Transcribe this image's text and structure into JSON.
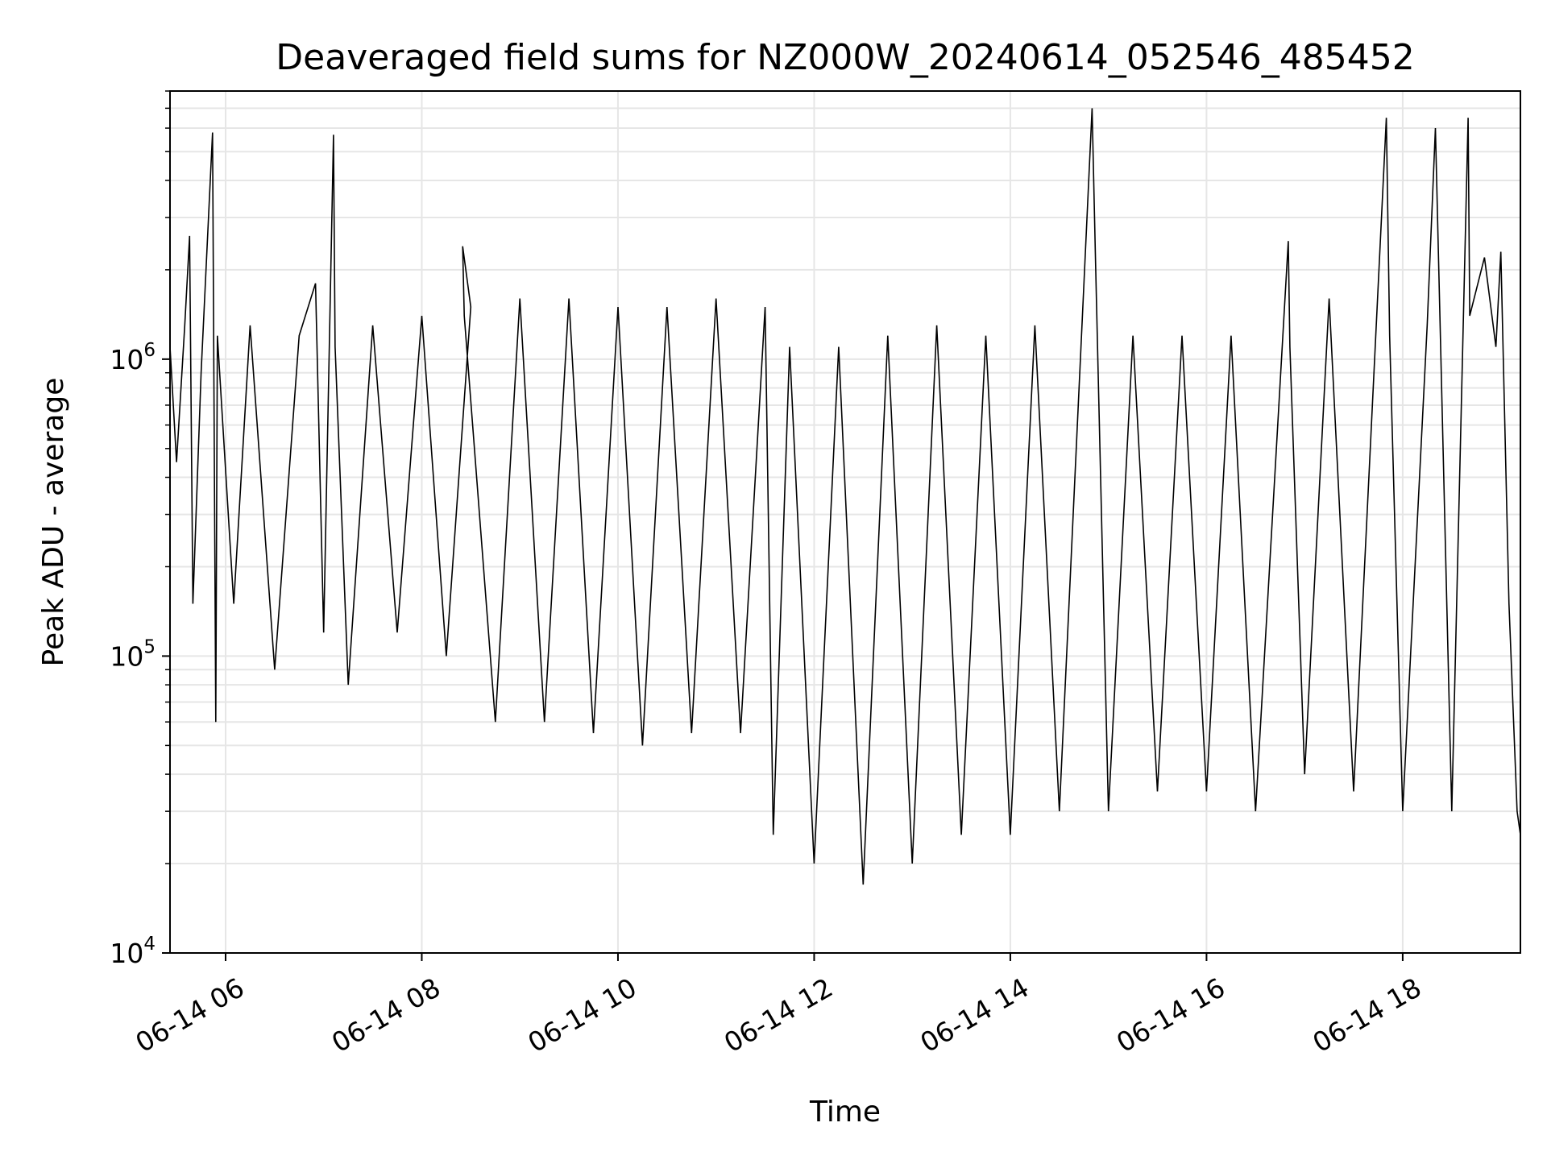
{
  "chart_data": {
    "type": "line",
    "title": "Deaveraged field sums for NZ000W_20240614_052546_485452",
    "xlabel": "Time",
    "ylabel": "Peak ADU - average",
    "yscale": "log",
    "ylim": [
      10000,
      8000000
    ],
    "xlim": [
      "2024-06-14 05:26",
      "2024-06-14 19:12"
    ],
    "grid": true,
    "line_color": "#000000",
    "grid_color": "#e6e6e6",
    "x_ticks": [
      {
        "value": "2024-06-14 06:00",
        "label": "06-14 06"
      },
      {
        "value": "2024-06-14 08:00",
        "label": "06-14 08"
      },
      {
        "value": "2024-06-14 10:00",
        "label": "06-14 10"
      },
      {
        "value": "2024-06-14 12:00",
        "label": "06-14 12"
      },
      {
        "value": "2024-06-14 14:00",
        "label": "06-14 14"
      },
      {
        "value": "2024-06-14 16:00",
        "label": "06-14 16"
      },
      {
        "value": "2024-06-14 18:00",
        "label": "06-14 18"
      }
    ],
    "y_ticks": [
      {
        "value": 10000,
        "base": "10",
        "exp": "4"
      },
      {
        "value": 100000,
        "base": "10",
        "exp": "5"
      },
      {
        "value": 1000000,
        "base": "10",
        "exp": "6"
      }
    ],
    "series": [
      {
        "x": [
          "2024-06-14 05:26",
          "2024-06-14 05:30",
          "2024-06-14 05:35",
          "2024-06-14 05:38",
          "2024-06-14 05:40",
          "2024-06-14 05:45",
          "2024-06-14 05:52",
          "2024-06-14 05:54",
          "2024-06-14 05:55",
          "2024-06-14 06:05",
          "2024-06-14 06:15",
          "2024-06-14 06:30",
          "2024-06-14 06:45",
          "2024-06-14 06:55",
          "2024-06-14 07:00",
          "2024-06-14 07:06",
          "2024-06-14 07:07",
          "2024-06-14 07:15",
          "2024-06-14 07:30",
          "2024-06-14 07:45",
          "2024-06-14 08:00",
          "2024-06-14 08:15",
          "2024-06-14 08:30",
          "2024-06-14 08:25",
          "2024-06-14 08:26",
          "2024-06-14 08:45",
          "2024-06-14 09:00",
          "2024-06-14 09:15",
          "2024-06-14 09:30",
          "2024-06-14 09:45",
          "2024-06-14 10:00",
          "2024-06-14 10:15",
          "2024-06-14 10:30",
          "2024-06-14 10:45",
          "2024-06-14 11:00",
          "2024-06-14 11:15",
          "2024-06-14 11:30",
          "2024-06-14 11:35",
          "2024-06-14 11:45",
          "2024-06-14 12:00",
          "2024-06-14 12:15",
          "2024-06-14 12:30",
          "2024-06-14 12:45",
          "2024-06-14 13:00",
          "2024-06-14 13:15",
          "2024-06-14 13:30",
          "2024-06-14 13:45",
          "2024-06-14 14:00",
          "2024-06-14 14:15",
          "2024-06-14 14:30",
          "2024-06-14 14:50",
          "2024-06-14 14:52",
          "2024-06-14 15:00",
          "2024-06-14 15:15",
          "2024-06-14 15:30",
          "2024-06-14 15:45",
          "2024-06-14 16:00",
          "2024-06-14 16:15",
          "2024-06-14 16:30",
          "2024-06-14 16:50",
          "2024-06-14 16:51",
          "2024-06-14 17:00",
          "2024-06-14 17:15",
          "2024-06-14 17:30",
          "2024-06-14 17:50",
          "2024-06-14 17:52",
          "2024-06-14 18:00",
          "2024-06-14 18:15",
          "2024-06-14 18:20",
          "2024-06-14 18:30",
          "2024-06-14 18:40",
          "2024-06-14 18:41",
          "2024-06-14 18:50",
          "2024-06-14 18:57",
          "2024-06-14 19:00",
          "2024-06-14 19:05",
          "2024-06-14 19:10",
          "2024-06-14 19:12"
        ],
        "y": [
          1100000,
          450000,
          1300000,
          2600000,
          150000,
          900000,
          5800000,
          60000,
          1200000,
          150000,
          1300000,
          90000,
          1200000,
          1800000,
          120000,
          5700000,
          1100000,
          80000,
          1300000,
          120000,
          1400000,
          100000,
          1500000,
          2400000,
          1400000,
          60000,
          1600000,
          60000,
          1600000,
          55000,
          1500000,
          50000,
          1500000,
          55000,
          1600000,
          55000,
          1500000,
          25000,
          1100000,
          20000,
          1100000,
          17000,
          1200000,
          20000,
          1300000,
          25000,
          1200000,
          25000,
          1300000,
          30000,
          7000000,
          2300000,
          30000,
          1200000,
          35000,
          1200000,
          35000,
          1200000,
          30000,
          2500000,
          1100000,
          40000,
          1600000,
          35000,
          6500000,
          1200000,
          30000,
          1300000,
          6000000,
          30000,
          6500000,
          1400000,
          2200000,
          1100000,
          2300000,
          150000,
          30000,
          25000
        ]
      }
    ]
  }
}
